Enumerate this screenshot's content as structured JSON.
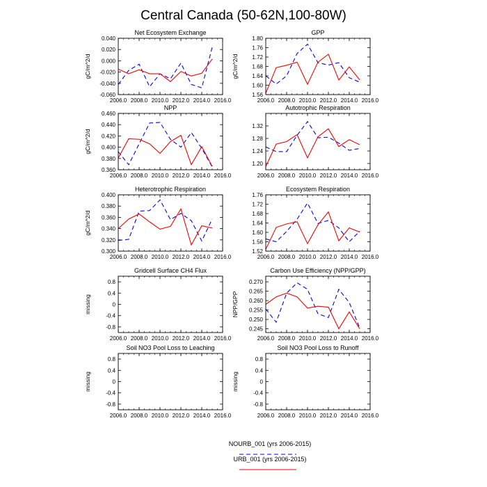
{
  "figure": {
    "title": "Central Canada (50-62N,100-80W)"
  },
  "colors": {
    "nourb": "#0000ff",
    "urb": "#ff0000"
  },
  "legend": {
    "entries": [
      {
        "key": "nourb",
        "label": "NOURB_001 (yrs 2006-2015)",
        "style": "dashed"
      },
      {
        "key": "urb",
        "label": "URB_001 (yrs 2006-2015)",
        "style": "solid"
      }
    ]
  },
  "chart_data": [
    {
      "type": "line",
      "title": "Net Ecosystem Exchange",
      "ylabel": "gC/m^2/d",
      "xlim": [
        2006,
        2016
      ],
      "ylim": [
        -0.06,
        0.04
      ],
      "xticks": [
        "2006.0",
        "2008.0",
        "2010.0",
        "2012.0",
        "2014.0",
        "2016.0"
      ],
      "yticks": [
        "-0.060",
        "-0.040",
        "-0.020",
        "0.000",
        "0.020",
        "0.040"
      ],
      "x": [
        2006,
        2007,
        2008,
        2009,
        2010,
        2011,
        2012,
        2013,
        2014,
        2015
      ],
      "series": [
        {
          "name": "NOURB_001 (yrs 2006-2015)",
          "values": [
            -0.042,
            -0.017,
            -0.006,
            -0.046,
            -0.023,
            -0.032,
            -0.004,
            -0.042,
            -0.048,
            0.024
          ]
        },
        {
          "name": "URB_001 (yrs 2006-2015)",
          "values": [
            -0.015,
            -0.023,
            -0.016,
            -0.023,
            -0.023,
            -0.037,
            -0.019,
            -0.027,
            -0.022,
            0.003
          ]
        }
      ]
    },
    {
      "type": "line",
      "title": "GPP",
      "ylabel": "gC/m^2/d",
      "xlim": [
        2006,
        2016
      ],
      "ylim": [
        1.56,
        1.8
      ],
      "xticks": [
        "2006.0",
        "2008.0",
        "2010.0",
        "2012.0",
        "2014.0",
        "2016.0"
      ],
      "yticks": [
        "1.56",
        "1.60",
        "1.64",
        "1.68",
        "1.72",
        "1.76",
        "1.80"
      ],
      "x": [
        2006,
        2007,
        2008,
        2009,
        2010,
        2011,
        2012,
        2013,
        2014,
        2015
      ],
      "series": [
        {
          "name": "NOURB_001 (yrs 2006-2015)",
          "values": [
            1.64,
            1.605,
            1.64,
            1.735,
            1.775,
            1.696,
            1.686,
            1.696,
            1.632,
            1.613
          ]
        },
        {
          "name": "URB_001 (yrs 2006-2015)",
          "values": [
            1.566,
            1.675,
            1.685,
            1.698,
            1.604,
            1.698,
            1.732,
            1.622,
            1.678,
            1.623
          ]
        }
      ]
    },
    {
      "type": "line",
      "title": "NPP",
      "ylabel": "gC/m^2/d",
      "xlim": [
        2006,
        2016
      ],
      "ylim": [
        0.36,
        0.46
      ],
      "xticks": [
        "2006.0",
        "2008.0",
        "2010.0",
        "2012.0",
        "2014.0",
        "2016.0"
      ],
      "yticks": [
        "0.360",
        "0.380",
        "0.400",
        "0.420",
        "0.440",
        "0.460"
      ],
      "x": [
        2006,
        2007,
        2008,
        2009,
        2010,
        2011,
        2012,
        2013,
        2014,
        2015
      ],
      "series": [
        {
          "name": "NOURB_001 (yrs 2006-2015)",
          "values": [
            0.392,
            0.369,
            0.406,
            0.443,
            0.444,
            0.414,
            0.4,
            0.426,
            0.398,
            0.365
          ]
        },
        {
          "name": "URB_001 (yrs 2006-2015)",
          "values": [
            0.381,
            0.415,
            0.414,
            0.406,
            0.389,
            0.41,
            0.421,
            0.369,
            0.401,
            0.366
          ]
        }
      ]
    },
    {
      "type": "line",
      "title": "Autotrophic Respiration",
      "ylabel": "",
      "xlim": [
        2006,
        2016
      ],
      "ylim": [
        1.18,
        1.36
      ],
      "xticks": [
        "2006.0",
        "2008.0",
        "2010.0",
        "2012.0",
        "2014.0",
        "2016.0"
      ],
      "yticks": [
        "1.20",
        "1.24",
        "1.28",
        "1.32"
      ],
      "x": [
        2006,
        2007,
        2008,
        2009,
        2010,
        2011,
        2012,
        2013,
        2014,
        2015
      ],
      "series": [
        {
          "name": "NOURB_001 (yrs 2006-2015)",
          "values": [
            1.253,
            1.238,
            1.238,
            1.29,
            1.334,
            1.282,
            1.284,
            1.265,
            1.242,
            1.248
          ]
        },
        {
          "name": "URB_001 (yrs 2006-2015)",
          "values": [
            1.19,
            1.262,
            1.27,
            1.292,
            1.218,
            1.285,
            1.311,
            1.254,
            1.276,
            1.26
          ]
        }
      ]
    },
    {
      "type": "line",
      "title": "Heterotrophic Respiration",
      "ylabel": "gC/m^2/d",
      "xlim": [
        2006,
        2016
      ],
      "ylim": [
        0.3,
        0.4
      ],
      "xticks": [
        "2006.0",
        "2008.0",
        "2010.0",
        "2012.0",
        "2014.0",
        "2016.0"
      ],
      "yticks": [
        "0.300",
        "0.320",
        "0.340",
        "0.360",
        "0.380",
        "0.400"
      ],
      "x": [
        2006,
        2007,
        2008,
        2009,
        2010,
        2011,
        2012,
        2013,
        2014,
        2015
      ],
      "series": [
        {
          "name": "NOURB_001 (yrs 2006-2015)",
          "values": [
            0.319,
            0.321,
            0.371,
            0.372,
            0.391,
            0.356,
            0.367,
            0.354,
            0.318,
            0.357
          ]
        },
        {
          "name": "URB_001 (yrs 2006-2015)",
          "values": [
            0.34,
            0.357,
            0.366,
            0.352,
            0.339,
            0.344,
            0.375,
            0.311,
            0.345,
            0.341
          ]
        }
      ]
    },
    {
      "type": "line",
      "title": "Ecosystem Respiration",
      "ylabel": "",
      "xlim": [
        2006,
        2016
      ],
      "ylim": [
        1.52,
        1.76
      ],
      "xticks": [
        "2006.0",
        "2008.0",
        "2010.0",
        "2012.0",
        "2014.0",
        "2016.0"
      ],
      "yticks": [
        "1.52",
        "1.56",
        "1.60",
        "1.64",
        "1.68",
        "1.72",
        "1.76"
      ],
      "x": [
        2006,
        2007,
        2008,
        2009,
        2010,
        2011,
        2012,
        2013,
        2014,
        2015
      ],
      "series": [
        {
          "name": "NOURB_001 (yrs 2006-2015)",
          "values": [
            1.572,
            1.56,
            1.604,
            1.656,
            1.725,
            1.638,
            1.651,
            1.619,
            1.56,
            1.605
          ]
        },
        {
          "name": "URB_001 (yrs 2006-2015)",
          "values": [
            1.528,
            1.621,
            1.636,
            1.645,
            1.552,
            1.632,
            1.687,
            1.564,
            1.619,
            1.601
          ]
        }
      ]
    },
    {
      "type": "line",
      "title": "Gridcell Surface CH4 Flux",
      "ylabel": "missing",
      "xlim": [
        2006,
        2016
      ],
      "ylim": [
        -1,
        1
      ],
      "xticks": [
        "2006.0",
        "2008.0",
        "2010.0",
        "2012.0",
        "2014.0",
        "2016.0"
      ],
      "yticks": [
        "-0.8",
        "-0.4",
        "0",
        "0.4",
        "0.8"
      ],
      "x": [],
      "series": []
    },
    {
      "type": "line",
      "title": "Carbon Use Efficiency (NPP/GPP)",
      "ylabel": "NPP/GPP",
      "xlim": [
        2006,
        2016
      ],
      "ylim": [
        0.243,
        0.273
      ],
      "xticks": [
        "2006.0",
        "2008.0",
        "2010.0",
        "2012.0",
        "2014.0",
        "2016.0"
      ],
      "yticks": [
        "0.245",
        "0.250",
        "0.255",
        "0.260",
        "0.265",
        "0.270"
      ],
      "x": [
        2006,
        2007,
        2008,
        2009,
        2010,
        2011,
        2012,
        2013,
        2014,
        2015
      ],
      "series": [
        {
          "name": "NOURB_001 (yrs 2006-2015)",
          "values": [
            0.2555,
            0.2485,
            0.264,
            0.2695,
            0.266,
            0.253,
            0.251,
            0.266,
            0.259,
            0.2455
          ]
        },
        {
          "name": "URB_001 (yrs 2006-2015)",
          "values": [
            0.258,
            0.262,
            0.264,
            0.262,
            0.256,
            0.257,
            0.2565,
            0.245,
            0.254,
            0.245
          ]
        }
      ]
    },
    {
      "type": "line",
      "title": "Soil NO3 Pool Loss to Leaching",
      "ylabel": "missing",
      "xlim": [
        2006,
        2016
      ],
      "ylim": [
        -1,
        1
      ],
      "xticks": [
        "2006.0",
        "2008.0",
        "2010.0",
        "2012.0",
        "2014.0",
        "2016.0"
      ],
      "yticks": [
        "-0.8",
        "-0.4",
        "0",
        "0.4",
        "0.8"
      ],
      "x": [],
      "series": []
    },
    {
      "type": "line",
      "title": "Soil NO3 Pool Loss to Runoff",
      "ylabel": "missing",
      "xlim": [
        2006,
        2016
      ],
      "ylim": [
        -1,
        1
      ],
      "xticks": [
        "2006.0",
        "2008.0",
        "2010.0",
        "2012.0",
        "2014.0",
        "2016.0"
      ],
      "yticks": [
        "-0.8",
        "-0.4",
        "0",
        "0.4",
        "0.8"
      ],
      "x": [],
      "series": []
    }
  ]
}
